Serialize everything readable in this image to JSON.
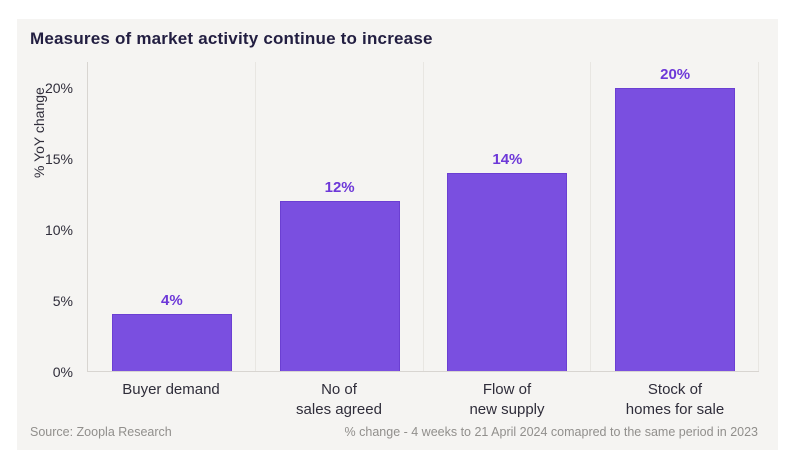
{
  "card": {
    "title": "Measures of market activity continue to increase"
  },
  "footer": {
    "source": "Source: Zoopla Research",
    "note": "% change - 4 weeks to 21 April 2024 comapred to the same period in 2023"
  },
  "colors": {
    "page_bg": "#ffffff",
    "card_bg": "#f5f4f2",
    "title_text": "#221e41",
    "axis_text": "#2f2d3a",
    "bar": "#7a4fe0",
    "bar_border": "#6b3fd2",
    "data_label": "#6d38d8",
    "grid_line": "#e8e6e2",
    "axis_line": "#d8d5d1",
    "footer_text": "#918f8c"
  },
  "chart_data": {
    "type": "bar",
    "title": "Measures of market activity continue to increase",
    "categories": [
      "Buyer demand",
      "No of\nsales agreed",
      "Flow of\nnew supply",
      "Stock of\nhomes for sale"
    ],
    "values": [
      4,
      12,
      14,
      20
    ],
    "data_labels": [
      "4%",
      "12%",
      "14%",
      "20%"
    ],
    "xlabel": "",
    "ylabel": "% YoY change",
    "yticks": [
      "0%",
      "5%",
      "10%",
      "15%",
      "20%"
    ],
    "ytick_values": [
      0,
      5,
      10,
      15,
      20
    ],
    "ylim": [
      0,
      21.8
    ],
    "grid": "vertical category separators only",
    "legend": "none",
    "bar_orientation": "vertical"
  }
}
